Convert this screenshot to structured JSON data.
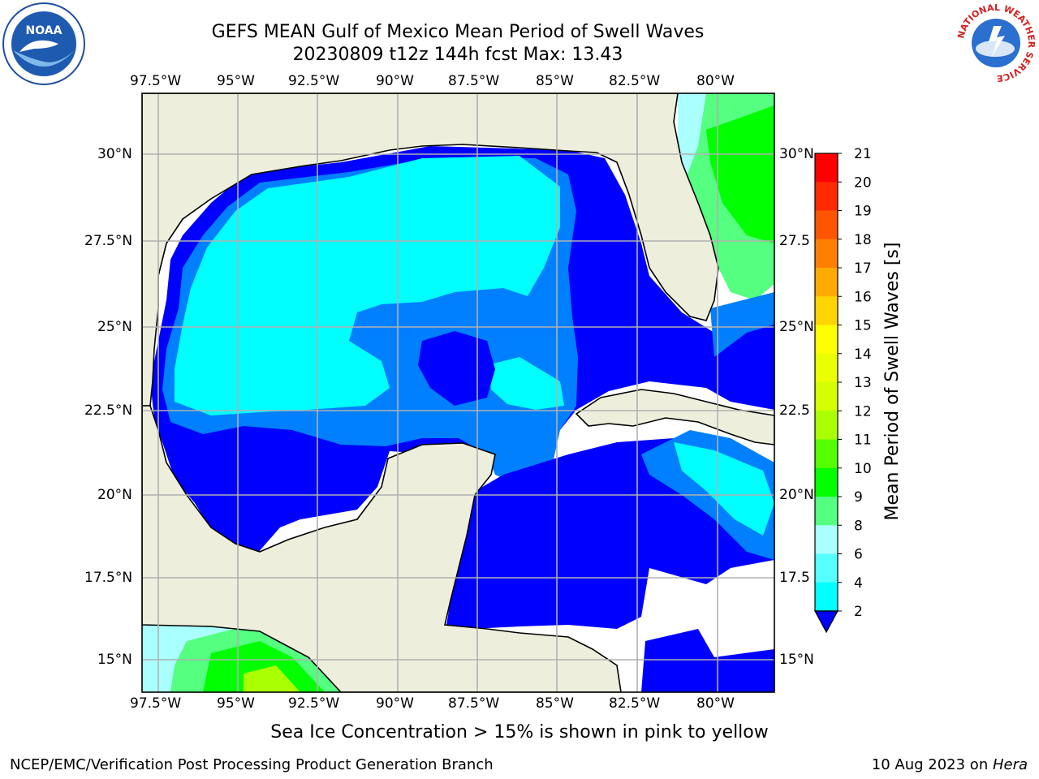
{
  "title": "GEFS MEAN Gulf of Mexico Mean Period of Swell Waves",
  "subtitle": "20230809 t12z 144h fcst   Max: 13.43",
  "lon_labels": [
    "97.5°W",
    "95°W",
    "92.5°W",
    "90°W",
    "87.5°W",
    "85°W",
    "82.5°W",
    "80°W"
  ],
  "lat_labels_left": [
    "30°N",
    "27.5°N",
    "25°N",
    "22.5°N",
    "20°N",
    "17.5°N",
    "15°N"
  ],
  "lat_labels_right": [
    "30°N",
    "27.5",
    "25°N",
    "22.5",
    "20°N",
    "17.5",
    "15°N"
  ],
  "colorbar": {
    "label": "Mean Period of Swell Waves [s]",
    "ticks": [
      "21",
      "20",
      "19",
      "18",
      "17",
      "16",
      "15",
      "14",
      "13",
      "12",
      "11",
      "10",
      "9",
      "8",
      "6",
      "4",
      "2"
    ],
    "colors": [
      "#ff0000",
      "#ff2a00",
      "#ff5500",
      "#ff8000",
      "#ffaa00",
      "#ffd400",
      "#ffff00",
      "#eaff00",
      "#d4ff00",
      "#aaff00",
      "#55ff00",
      "#00ff00",
      "#55ff7f",
      "#aaffff",
      "#55ffff",
      "#00ffff",
      "#0080ff",
      "#0000ff"
    ]
  },
  "note": "Sea Ice Concentration > 15% is shown in pink to yellow",
  "footer_left": "NCEP/EMC/Verification Post Processing Product Generation Branch",
  "footer_right_date": "10 Aug 2023 on ",
  "footer_right_machine": "Hera",
  "logos": {
    "left": "noaa-logo",
    "right": "nws-logo",
    "nws_ring_text": "NATIONAL WEATHER SERVICE"
  }
}
